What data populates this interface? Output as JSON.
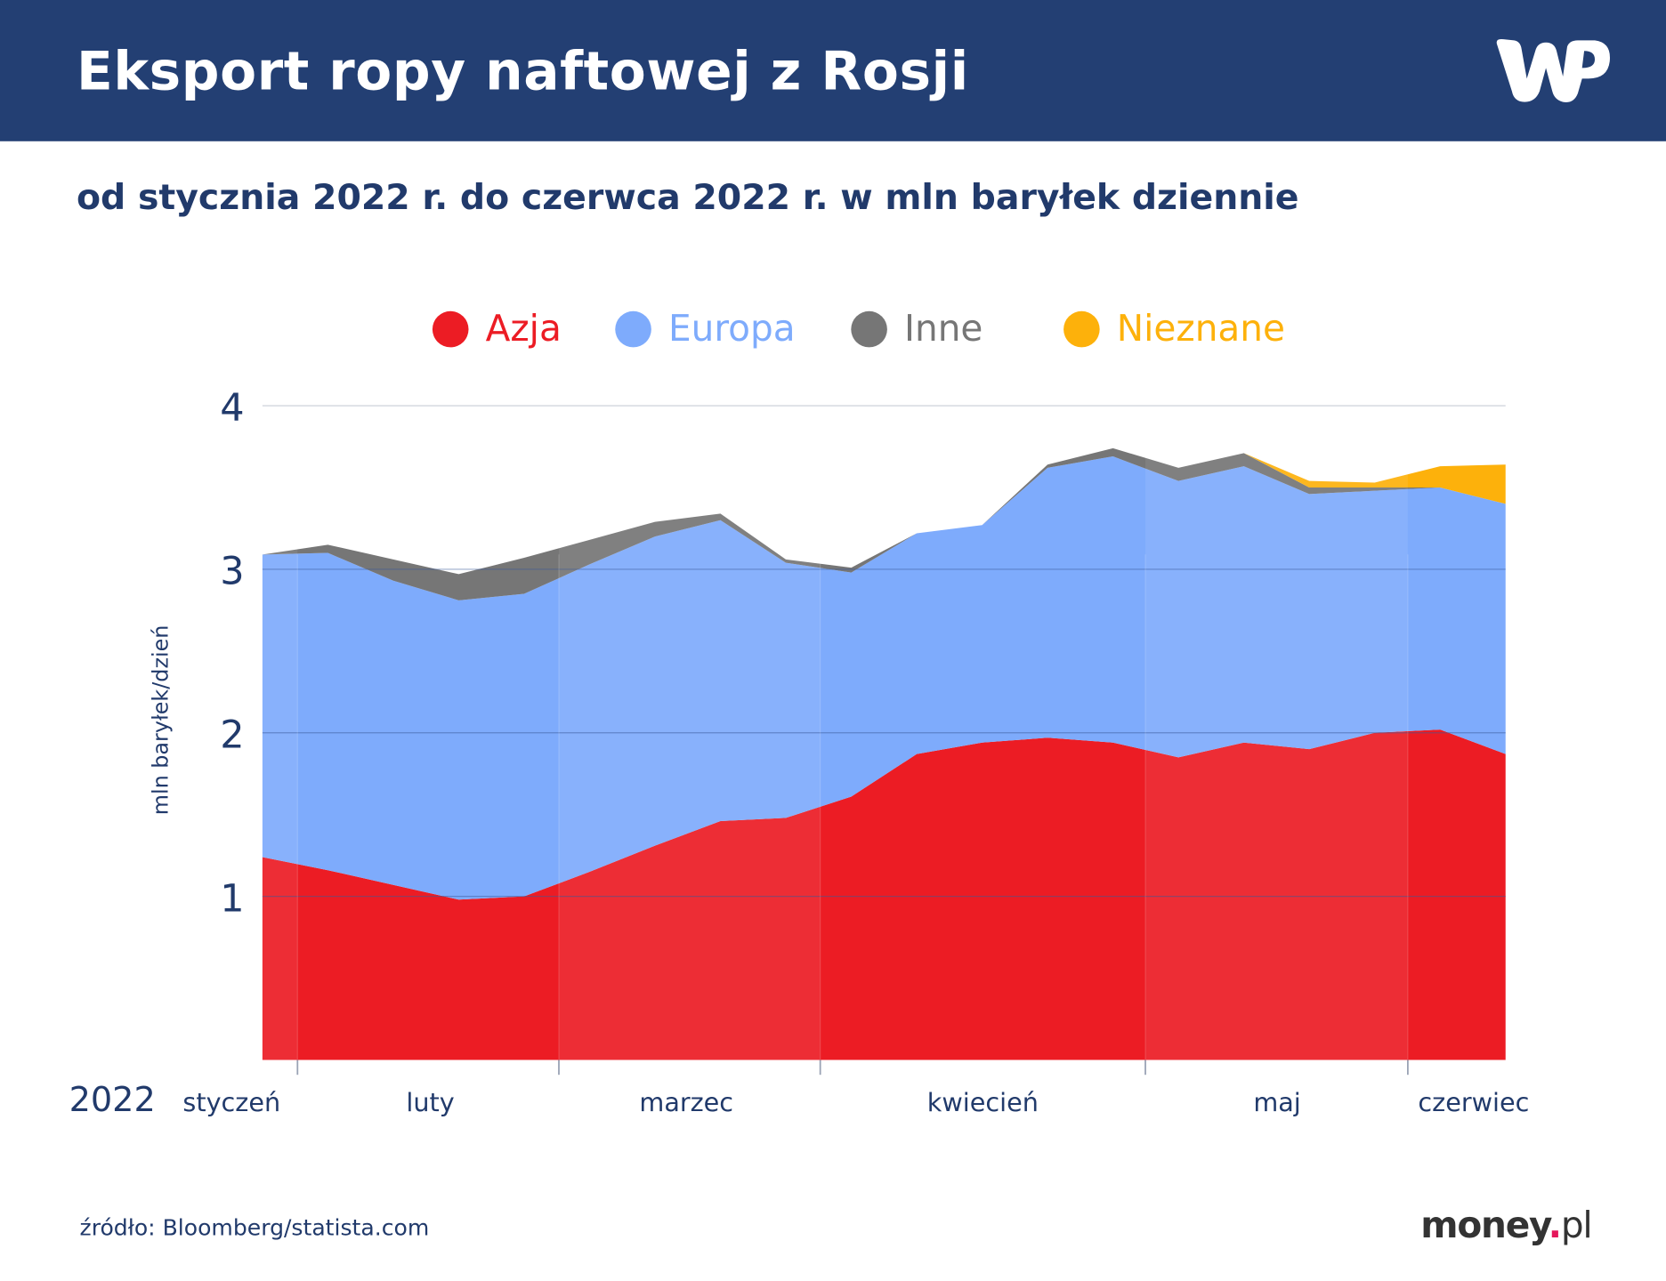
{
  "header": {
    "title": "Eksport ropy naftowej z Rosji",
    "logo": "WP"
  },
  "subtitle": "od stycznia 2022 r. do czerwca 2022 r. w mln baryłek dziennie",
  "footer": {
    "source": "źródło: Bloomberg/statista.com",
    "brand": "money.pl"
  },
  "colors": {
    "header": "#233f73",
    "Azja": "#ec1c24",
    "Europa": "#7eabfc",
    "Inne": "#767676",
    "Nieznane": "#fdb10b"
  },
  "chart_data": {
    "type": "area",
    "stacked": true,
    "title": "",
    "ylabel": "mln baryłek/dzień",
    "year_label": "2022",
    "ylim": [
      0,
      4
    ],
    "yticks": [
      "1",
      "2",
      "3",
      "4"
    ],
    "grid": true,
    "legend_placement": "top",
    "months": [
      "styczeń",
      "luty",
      "marzec",
      "kwiecień",
      "maj",
      "czerwiec"
    ],
    "series": [
      {
        "name": "Azja",
        "color": "#ec1c24",
        "values": [
          1.24,
          1.16,
          1.07,
          0.98,
          1.0,
          1.15,
          1.31,
          1.46,
          1.48,
          1.61,
          1.87,
          1.94,
          1.97,
          1.94,
          1.85,
          1.94,
          1.9,
          2.0,
          2.02,
          1.87
        ]
      },
      {
        "name": "Europa",
        "color": "#7eabfc",
        "values": [
          1.85,
          1.94,
          1.86,
          1.83,
          1.85,
          1.88,
          1.89,
          1.84,
          1.56,
          1.37,
          1.35,
          1.33,
          1.65,
          1.75,
          1.69,
          1.69,
          1.56,
          1.48,
          1.48,
          1.53
        ]
      },
      {
        "name": "Inne",
        "color": "#767676",
        "values": [
          0,
          0.05,
          0.13,
          0.16,
          0.22,
          0.15,
          0.09,
          0.04,
          0.02,
          0.03,
          0,
          0,
          0.02,
          0.05,
          0.08,
          0.08,
          0.04,
          0.02,
          0,
          0
        ]
      },
      {
        "name": "Nieznane",
        "color": "#fdb10b",
        "values": [
          0,
          0,
          0,
          0,
          0,
          0,
          0,
          0,
          0,
          0,
          0,
          0,
          0,
          0,
          0,
          0,
          0.04,
          0.03,
          0.13,
          0.24
        ]
      }
    ]
  }
}
